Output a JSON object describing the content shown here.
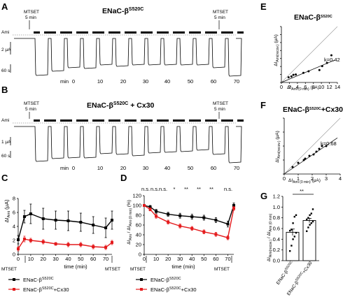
{
  "panels": {
    "A": {
      "letter": "A",
      "title_main": "ENaC-β",
      "title_sup": "S520C",
      "ami": "Ami",
      "mtset_left": "MTSET",
      "mtset_left_sub": "5 min",
      "mtset_right": "MTSET",
      "mtset_right_sub": "5 min",
      "scale_current": "2 μA",
      "scale_time": "60 s",
      "time_prefix": "min",
      "time_labels": [
        "0",
        "10",
        "20",
        "30",
        "40",
        "50",
        "60",
        "70"
      ]
    },
    "B": {
      "letter": "B",
      "title_main": "ENaC-β",
      "title_sup": "S520C",
      "title_suffix": " + Cx30",
      "ami": "Ami",
      "mtset_left": "MTSET",
      "mtset_left_sub": "5 min",
      "mtset_right": "MTSET",
      "mtset_right_sub": "5 min",
      "scale_current": "1 μA",
      "scale_time": "60 s",
      "time_prefix": "min",
      "time_labels": [
        "0",
        "10",
        "20",
        "30",
        "40",
        "50",
        "60",
        "70"
      ]
    },
    "C": {
      "letter": "C",
      "ylabel": "ΔI",
      "ylabel_sub": "Ami",
      "ylabel_unit": " (μA)",
      "xlabel": "time (min)",
      "yticks": [
        "0",
        "2",
        "4",
        "6",
        "8"
      ],
      "xticks": [
        "0",
        "10",
        "20",
        "30",
        "40",
        "50",
        "60",
        "70"
      ],
      "mtset_left": "MTSET",
      "mtset_right": "MTSET",
      "legend": [
        {
          "main": "ENaC-β",
          "sup": "S520C",
          "suffix": "",
          "color": "#000000"
        },
        {
          "main": "ENaC-β",
          "sup": "S520C",
          "suffix": "+Cx30",
          "color": "#e41a1c"
        }
      ]
    },
    "D": {
      "letter": "D",
      "ylabel": "ΔI",
      "ylabel_sub1": "Ami",
      "ylabel_mid": " / ΔI",
      "ylabel_sub2": "Ami (0 min)",
      "ylabel_unit": " (%)",
      "xlabel": "time (min)",
      "yticks": [
        "0",
        "20",
        "40",
        "60",
        "80",
        "100",
        "120"
      ],
      "xticks": [
        "0",
        "10",
        "20",
        "30",
        "40",
        "50",
        "60",
        "70"
      ],
      "sig_labels": [
        "n.s.",
        "n.s.",
        "n.s.",
        "*",
        "**",
        "**",
        "**",
        "n.s."
      ],
      "mtset_left": "MTSET",
      "mtset_right": "MTSET",
      "legend": [
        {
          "main": "ENaC-β",
          "sup": "S520C",
          "suffix": "",
          "color": "#000000"
        },
        {
          "main": "ENaC-β",
          "sup": "S520C",
          "suffix": "+Cx30",
          "color": "#e41a1c"
        }
      ]
    },
    "E": {
      "letter": "E",
      "title_main": "ENaC-β",
      "title_sup": "S520C",
      "ylabel": "ΔI",
      "ylabel_sub": "Ami(recov.)",
      "ylabel_unit": " (μA)",
      "xlabel": "ΔI",
      "xlabel_sub": "Ami (0 min)",
      "xlabel_unit": " (μA)",
      "yticks": [
        "0",
        "2",
        "4",
        "6",
        "8",
        "10",
        "12",
        "14"
      ],
      "xticks": [
        "0",
        "2",
        "4",
        "6",
        "8",
        "10",
        "12",
        "14"
      ],
      "slope_label": "k=0.42"
    },
    "F": {
      "letter": "F",
      "title_main": "ENaC-β",
      "title_sup": "S520C",
      "title_suffix": "+Cx30",
      "ylabel": "ΔI",
      "ylabel_sub": "Ami(recov.)",
      "ylabel_unit": " (μA)",
      "xlabel": "ΔI",
      "xlabel_sub": "Ami (0 min)",
      "xlabel_unit": " (μA)",
      "yticks": [
        "0",
        "1",
        "2",
        "3",
        "4"
      ],
      "xticks": [
        "0",
        "1",
        "2",
        "3",
        "4"
      ],
      "slope_label": "k=0.68"
    },
    "G": {
      "letter": "G",
      "ylabel": "ΔI",
      "ylabel_sub1": "Ami(recov.)",
      "ylabel_mid": " / ΔI",
      "ylabel_sub2": "Ami (0 min)",
      "yticks": [
        "0.0",
        "0.2",
        "0.4",
        "0.6",
        "0.8",
        "1.0",
        "1.2"
      ],
      "sig": "**",
      "categories": [
        {
          "main": "ENaC-β",
          "sup": "S520C",
          "suffix": ""
        },
        {
          "main": "ENaC-β",
          "sup": "S520C",
          "suffix": "+Cx30"
        }
      ]
    }
  },
  "chart_data": [
    {
      "panel": "C",
      "type": "line",
      "x": [
        0,
        5,
        10,
        20,
        30,
        40,
        50,
        60,
        70,
        75
      ],
      "ylim": [
        0,
        8
      ],
      "xlim": [
        0,
        75
      ],
      "series": [
        {
          "values": [
            2.1,
            5.4,
            5.8,
            5.1,
            4.9,
            4.8,
            4.6,
            4.2,
            3.8,
            4.9
          ]
        },
        {
          "values": [
            0.8,
            2.2,
            2.0,
            1.8,
            1.5,
            1.4,
            1.4,
            1.1,
            1.0,
            1.7
          ]
        }
      ]
    },
    {
      "panel": "D",
      "type": "line",
      "x": [
        0,
        5,
        10,
        20,
        30,
        40,
        50,
        60,
        70,
        75
      ],
      "ylim": [
        0,
        120
      ],
      "xlim": [
        0,
        75
      ],
      "series": [
        {
          "values": [
            100,
            97,
            88,
            82,
            79,
            77,
            75,
            70,
            62,
            100
          ]
        },
        {
          "values": [
            100,
            92,
            78,
            66,
            58,
            53,
            46,
            41,
            34,
            94
          ]
        }
      ]
    },
    {
      "panel": "E",
      "type": "scatter",
      "x": [
        1.8,
        2.5,
        3.0,
        3.6,
        5.5,
        6.8,
        9.5,
        10.2,
        11.4,
        12.5
      ],
      "y": [
        1.3,
        1.5,
        1.9,
        2.0,
        2.4,
        2.8,
        3.1,
        4.1,
        4.9,
        6.8
      ],
      "xlim": [
        0,
        14
      ],
      "ylim": [
        0,
        14
      ]
    },
    {
      "panel": "F",
      "type": "scatter",
      "x": [
        0.6,
        1.0,
        1.4,
        1.5,
        1.8,
        2.1,
        2.3,
        2.5,
        2.7,
        3.0
      ],
      "y": [
        0.5,
        0.8,
        1.0,
        1.1,
        1.3,
        1.4,
        1.6,
        1.8,
        2.0,
        2.0
      ],
      "xlim": [
        0,
        4
      ],
      "ylim": [
        0,
        4
      ]
    },
    {
      "panel": "G",
      "type": "bar",
      "values": [
        0.53,
        0.75
      ],
      "errors": [
        0.06,
        0.04
      ],
      "colors": [
        "#000000",
        "#000000"
      ],
      "points": [
        [
          0.18,
          0.28,
          0.4,
          0.45,
          0.52,
          0.56,
          0.58,
          0.7,
          0.82,
          0.85
        ],
        [
          0.55,
          0.62,
          0.67,
          0.7,
          0.73,
          0.77,
          0.8,
          0.85,
          0.88,
          0.96
        ]
      ],
      "ylim": [
        0,
        1.2
      ]
    }
  ]
}
